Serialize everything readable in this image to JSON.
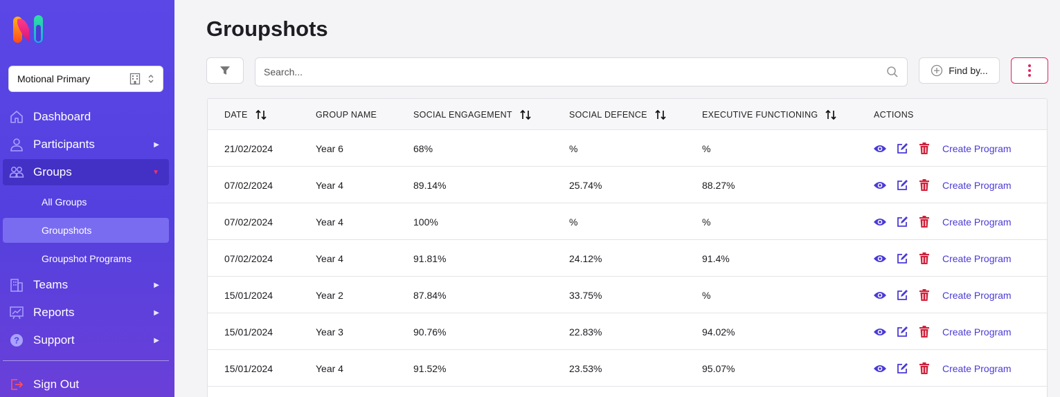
{
  "sidebar": {
    "org_select": {
      "value": "Motional Primary"
    },
    "nav": [
      {
        "label": "Dashboard",
        "icon": "home-icon"
      },
      {
        "label": "Participants",
        "icon": "person-icon"
      },
      {
        "label": "Groups",
        "icon": "people-icon"
      },
      {
        "label": "Teams",
        "icon": "building-icon"
      },
      {
        "label": "Reports",
        "icon": "chart-board-icon"
      },
      {
        "label": "Support",
        "icon": "help-circle-icon"
      }
    ],
    "groups_sub": [
      {
        "label": "All Groups"
      },
      {
        "label": "Groupshots"
      },
      {
        "label": "Groupshot Programs"
      }
    ],
    "sign_out": "Sign Out"
  },
  "page": {
    "title": "Groupshots",
    "search_placeholder": "Search...",
    "find_by_label": "Find by..."
  },
  "table": {
    "columns": [
      "DATE",
      "GROUP NAME",
      "SOCIAL ENGAGEMENT",
      "SOCIAL DEFENCE",
      "EXECUTIVE FUNCTIONING",
      "ACTIONS"
    ],
    "action_link": "Create Program",
    "rows": [
      {
        "date": "21/02/2024",
        "group": "Year 6",
        "engagement": "68%",
        "defence": "%",
        "executive": "%"
      },
      {
        "date": "07/02/2024",
        "group": "Year 4",
        "engagement": "89.14%",
        "defence": "25.74%",
        "executive": "88.27%"
      },
      {
        "date": "07/02/2024",
        "group": "Year 4",
        "engagement": "100%",
        "defence": "%",
        "executive": "%"
      },
      {
        "date": "07/02/2024",
        "group": "Year 4",
        "engagement": "91.81%",
        "defence": "24.12%",
        "executive": "91.4%"
      },
      {
        "date": "15/01/2024",
        "group": "Year 2",
        "engagement": "87.84%",
        "defence": "33.75%",
        "executive": "%"
      },
      {
        "date": "15/01/2024",
        "group": "Year 3",
        "engagement": "90.76%",
        "defence": "22.83%",
        "executive": "94.02%"
      },
      {
        "date": "15/01/2024",
        "group": "Year 4",
        "engagement": "91.52%",
        "defence": "23.53%",
        "executive": "95.07%"
      }
    ]
  },
  "colors": {
    "sidebar": "#5544e0",
    "accent": "#4a3ad6",
    "danger": "#d0203a"
  }
}
